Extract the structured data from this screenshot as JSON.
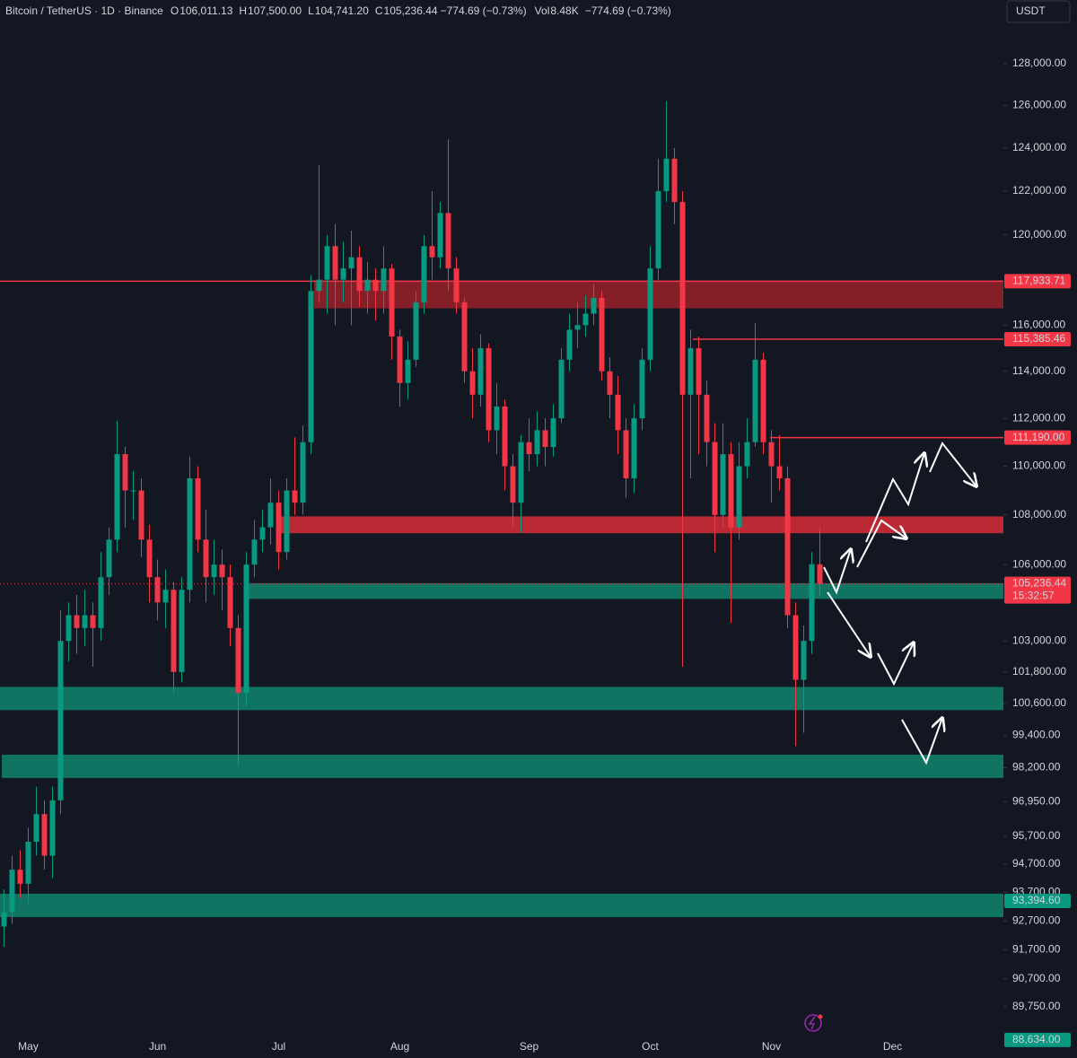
{
  "header": {
    "symbol": "Bitcoin / TetherUS · 1D · Binance",
    "fields": [
      {
        "key": "O",
        "value": "106,011.13"
      },
      {
        "key": "H",
        "value": "107,500.00"
      },
      {
        "key": "L",
        "value": "104,741.20"
      },
      {
        "key": "C",
        "value": "105,236.44"
      }
    ],
    "change": "−774.69 (−0.73%)",
    "vol_key": "Vol",
    "vol": "8.48K",
    "currency": "USDT"
  },
  "chart_data": {
    "type": "candlestick",
    "log": true,
    "colors": {
      "up": "#089981",
      "down": "#f23645"
    },
    "ylim": [
      88900,
      131100
    ],
    "yticks": [
      {
        "value": 128000,
        "label": "128,000.00"
      },
      {
        "value": 126000,
        "label": "126,000.00"
      },
      {
        "value": 124000,
        "label": "124,000.00"
      },
      {
        "value": 122000,
        "label": "122,000.00"
      },
      {
        "value": 120000,
        "label": "120,000.00"
      },
      {
        "value": 116000,
        "label": "116,000.00"
      },
      {
        "value": 114000,
        "label": "114,000.00"
      },
      {
        "value": 112000,
        "label": "112,000.00"
      },
      {
        "value": 110000,
        "label": "110,000.00"
      },
      {
        "value": 108000,
        "label": "108,000.00"
      },
      {
        "value": 106000,
        "label": "106,000.00"
      },
      {
        "value": 103000,
        "label": "103,000.00"
      },
      {
        "value": 101800,
        "label": "101,800.00"
      },
      {
        "value": 100600,
        "label": "100,600.00"
      },
      {
        "value": 99400,
        "label": "99,400.00"
      },
      {
        "value": 98200,
        "label": "98,200.00"
      },
      {
        "value": 96950,
        "label": "96,950.00"
      },
      {
        "value": 95700,
        "label": "95,700.00"
      },
      {
        "value": 94700,
        "label": "94,700.00"
      },
      {
        "value": 93700,
        "label": "93,700.00"
      },
      {
        "value": 92700,
        "label": "92,700.00"
      },
      {
        "value": 91700,
        "label": "91,700.00"
      },
      {
        "value": 90700,
        "label": "90,700.00"
      },
      {
        "value": 89750,
        "label": "89,750.00"
      }
    ],
    "categories": [
      null,
      null,
      null,
      "May",
      null,
      null,
      null,
      null,
      null,
      null,
      null,
      null,
      null,
      null,
      null,
      null,
      null,
      null,
      null,
      "Jun",
      null,
      null,
      null,
      null,
      null,
      null,
      null,
      null,
      null,
      null,
      null,
      null,
      null,
      null,
      "Jul",
      null,
      null,
      null,
      null,
      null,
      null,
      null,
      null,
      null,
      null,
      null,
      null,
      null,
      null,
      "Aug",
      null,
      null,
      null,
      null,
      null,
      null,
      null,
      null,
      null,
      null,
      null,
      null,
      null,
      null,
      null,
      "Sep",
      null,
      null,
      null,
      null,
      null,
      null,
      null,
      null,
      null,
      null,
      null,
      null,
      null,
      null,
      "Oct",
      null,
      null,
      null,
      null,
      null,
      null,
      null,
      null,
      null,
      null,
      null,
      null,
      null,
      null,
      "Nov",
      null,
      null,
      null,
      null,
      null,
      null,
      null,
      null,
      null,
      null,
      null,
      null,
      null,
      null,
      "Dec"
    ],
    "open": [
      92500,
      93000,
      94500,
      94000,
      95500,
      96500,
      95000,
      97000,
      103000,
      104000,
      103500,
      104000,
      103500,
      105500,
      107000,
      110500,
      109000,
      109000,
      107000,
      105500,
      104500,
      105000,
      101800,
      105000,
      109500,
      107000,
      105500,
      106000,
      105500,
      103500,
      101000,
      106000,
      107000,
      107500,
      108500,
      106500,
      109000,
      108500,
      111000,
      117500,
      118000,
      119500,
      118000,
      118500,
      119000,
      117500,
      118000,
      117500,
      118500,
      115500,
      113500,
      114500,
      117000,
      119500,
      119000,
      121000,
      118500,
      117000,
      114000,
      113000,
      115000,
      111500,
      112500,
      110000,
      108500,
      111000,
      110500,
      111500,
      110800,
      112000,
      114500,
      115800,
      116000,
      116500,
      117200,
      114000,
      113000,
      111500,
      109500,
      112000,
      114500,
      118500,
      122000,
      123500,
      121500,
      113000,
      115000,
      113000,
      111000,
      108000,
      110500,
      107500,
      110000,
      111000,
      114500,
      111000,
      110000,
      109500,
      104000,
      101500,
      103000,
      106011.13,
      null,
      null,
      null,
      null,
      null,
      null,
      null,
      null,
      null
    ],
    "high": [
      93800,
      95000,
      95200,
      96000,
      97500,
      97000,
      97500,
      104200,
      104500,
      104800,
      105000,
      104500,
      106500,
      107500,
      111900,
      110800,
      109800,
      109500,
      107600,
      106200,
      105800,
      105300,
      105500,
      110400,
      110000,
      108200,
      107000,
      106600,
      106000,
      104000,
      106500,
      107800,
      108200,
      109500,
      109000,
      109500,
      111200,
      111700,
      118200,
      123200,
      120000,
      120500,
      119700,
      120200,
      119500,
      118800,
      118500,
      119500,
      118700,
      115800,
      115300,
      117500,
      120000,
      122000,
      121500,
      124400,
      119000,
      117200,
      115000,
      115600,
      115200,
      113500,
      112800,
      110500,
      111300,
      112000,
      112300,
      112000,
      112600,
      115000,
      116500,
      117000,
      117300,
      117800,
      117500,
      114600,
      113800,
      112000,
      112600,
      115000,
      119500,
      123500,
      126200,
      124000,
      122000,
      115800,
      115500,
      113600,
      111800,
      111800,
      111000,
      111000,
      112000,
      116100,
      114800,
      111500,
      111300,
      110000,
      104500,
      103600,
      106500,
      107500,
      null,
      null,
      null,
      null,
      null,
      null,
      null,
      null,
      null
    ],
    "low": [
      91800,
      92600,
      93500,
      93300,
      95000,
      94500,
      94200,
      96500,
      102200,
      102500,
      102800,
      102000,
      103000,
      104800,
      106500,
      107500,
      107800,
      106300,
      104500,
      103800,
      103500,
      101000,
      101400,
      104500,
      106500,
      104500,
      104800,
      104200,
      102800,
      98300,
      100500,
      105500,
      106500,
      106800,
      105800,
      106200,
      108000,
      108000,
      110500,
      117000,
      116500,
      116000,
      117000,
      116000,
      116800,
      116500,
      116200,
      116500,
      114500,
      112500,
      112800,
      114200,
      116500,
      118000,
      118500,
      117500,
      116500,
      113500,
      112000,
      112500,
      111000,
      110500,
      109000,
      107500,
      107300,
      109800,
      110000,
      110000,
      110400,
      111800,
      114000,
      115000,
      115500,
      116000,
      113600,
      112000,
      110500,
      108700,
      108900,
      111500,
      114000,
      118000,
      121500,
      120500,
      102000,
      109500,
      110500,
      110000,
      106500,
      107500,
      103700,
      107000,
      109500,
      110800,
      110500,
      108500,
      109000,
      103500,
      99000,
      99500,
      102500,
      104741.2,
      null,
      null,
      null,
      null,
      null,
      null,
      null,
      null,
      null
    ],
    "close": [
      93000,
      94500,
      94000,
      95500,
      96500,
      95000,
      97000,
      103000,
      104000,
      103500,
      104000,
      103500,
      105500,
      107000,
      110500,
      109000,
      109000,
      107000,
      105500,
      104500,
      105000,
      101800,
      105000,
      109500,
      107000,
      105500,
      106000,
      105500,
      103500,
      101000,
      106000,
      107000,
      107500,
      108500,
      106500,
      109000,
      108500,
      111000,
      117500,
      118000,
      119500,
      118000,
      118500,
      119000,
      117500,
      118000,
      117500,
      118500,
      115500,
      113500,
      114500,
      117000,
      119500,
      119000,
      121000,
      118500,
      117000,
      114000,
      113000,
      115000,
      111500,
      112500,
      110000,
      108500,
      111000,
      110500,
      111500,
      110800,
      112000,
      114500,
      115800,
      116000,
      116500,
      117200,
      114000,
      113000,
      111500,
      109500,
      112000,
      114500,
      118500,
      122000,
      123500,
      121500,
      113000,
      115000,
      113000,
      111000,
      108000,
      110500,
      107500,
      110000,
      111000,
      114500,
      111000,
      110000,
      109500,
      104000,
      101500,
      103000,
      106011.13,
      105236.44,
      null,
      null,
      null,
      null,
      null,
      null,
      null,
      null,
      null
    ],
    "zones": [
      {
        "low": 116736,
        "high": 117966,
        "color": "#8a2029"
      },
      {
        "low": 107260,
        "high": 107940,
        "color": "#c42b36"
      },
      {
        "low": 104640,
        "high": 105260,
        "color": "#0f7a66"
      },
      {
        "low": 100350,
        "high": 101230,
        "color": "#0f7a66"
      },
      {
        "low": 97820,
        "high": 98680,
        "color": "#0f7a66"
      },
      {
        "low": 92830,
        "high": 93650,
        "color": "#0f7a66"
      }
    ],
    "levels": [
      {
        "value": 117933.71,
        "label": "117,933.71",
        "color": "#f23645"
      },
      {
        "value": 115385.46,
        "label": "115,385.46",
        "color": "#f23645"
      },
      {
        "value": 111190,
        "label": "111,190.00",
        "color": "#f23645"
      }
    ],
    "last_price": {
      "value": 105236.44,
      "label": "105,236.44",
      "countdown": "15:32:57",
      "color": "#f23645"
    },
    "price_labels": [
      {
        "value": 93394.6,
        "label": "93,394.60",
        "color": "#089981"
      },
      {
        "value": 88634,
        "label": "88,634.00",
        "color": "#089981"
      }
    ]
  }
}
